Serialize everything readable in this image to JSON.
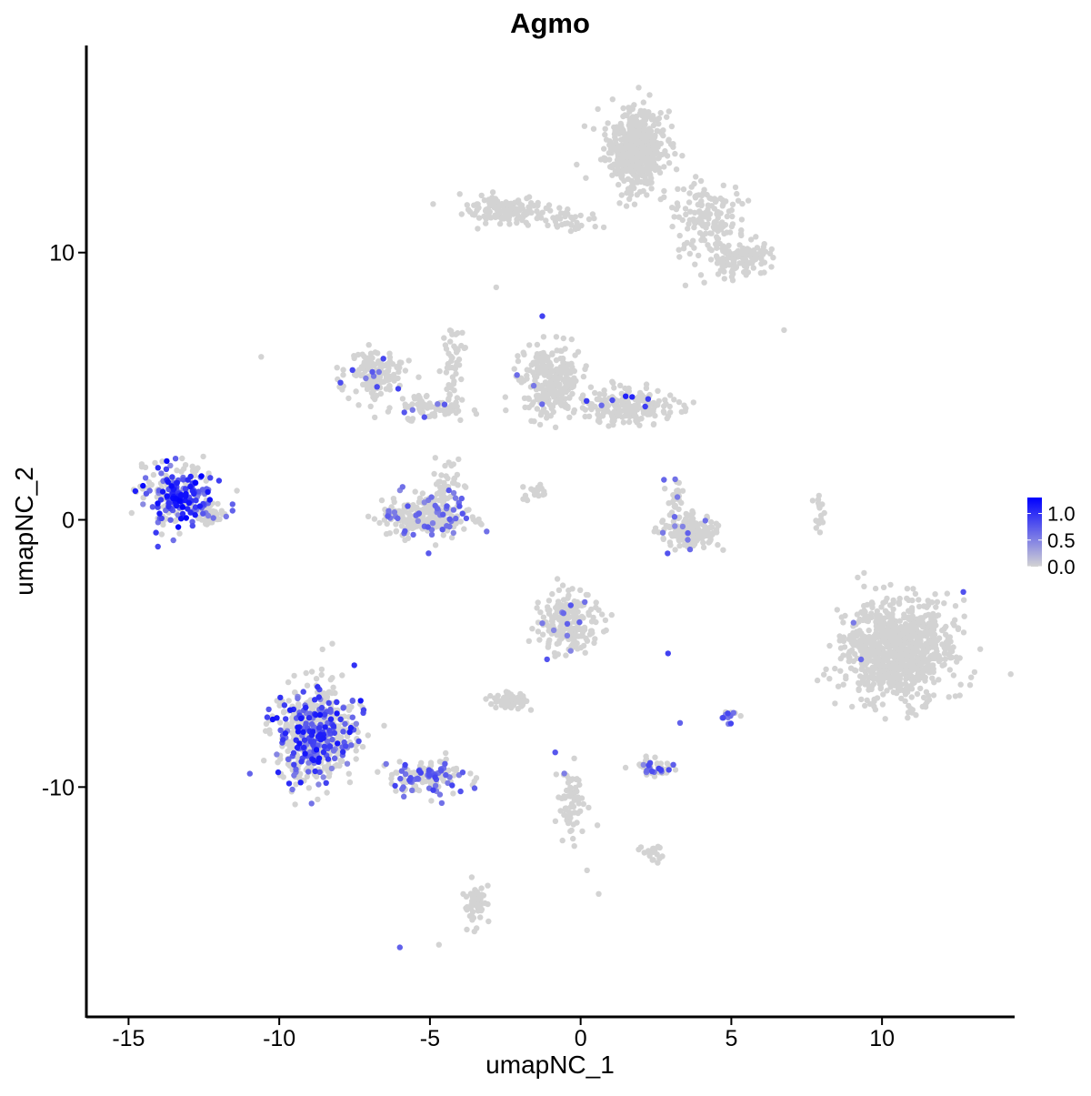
{
  "chart_data": {
    "type": "scatter",
    "title": "Agmo",
    "xlabel": "umapNC_1",
    "ylabel": "umapNC_2",
    "xlim": [
      -16.4,
      14.4
    ],
    "ylim": [
      -18.6,
      17.75
    ],
    "xticks": [
      -15,
      -10,
      -5,
      0,
      5,
      10
    ],
    "yticks": [
      -10,
      0,
      10
    ],
    "grid": false,
    "colorscale": {
      "low": "#d3d3d3",
      "high": "#0000ff",
      "min": 0.0,
      "max": 1.3,
      "ticks": [
        0.0,
        0.5,
        1.0
      ],
      "tick_labels": [
        "0.0",
        "0.5",
        "1.0"
      ]
    },
    "legend_placement": "right",
    "clusters": [
      {
        "center": [
          1.8,
          13.9
        ],
        "spread": [
          0.6,
          0.9
        ],
        "n": 550,
        "expressing_fraction": 0,
        "max_expr": 0
      },
      {
        "center": [
          4.2,
          11.2
        ],
        "spread": [
          0.8,
          0.9
        ],
        "n": 160,
        "expressing_fraction": 0,
        "max_expr": 0
      },
      {
        "center": [
          5.3,
          9.8
        ],
        "spread": [
          0.6,
          0.4
        ],
        "n": 120,
        "expressing_fraction": 0,
        "max_expr": 0
      },
      {
        "center": [
          -2.5,
          11.6
        ],
        "spread": [
          0.9,
          0.3
        ],
        "n": 140,
        "expressing_fraction": 0,
        "max_expr": 0
      },
      {
        "center": [
          -0.3,
          11.2
        ],
        "spread": [
          0.8,
          0.3
        ],
        "n": 40,
        "expressing_fraction": 0,
        "max_expr": 0
      },
      {
        "center": [
          -6.8,
          5.5
        ],
        "spread": [
          0.6,
          0.5
        ],
        "n": 150,
        "expressing_fraction": 0.05,
        "max_expr": 0.9
      },
      {
        "center": [
          -5.2,
          4.2
        ],
        "spread": [
          0.8,
          0.3
        ],
        "n": 80,
        "expressing_fraction": 0.03,
        "max_expr": 0.8
      },
      {
        "center": [
          -4.2,
          5.8
        ],
        "spread": [
          0.25,
          1.0
        ],
        "n": 50,
        "expressing_fraction": 0,
        "max_expr": 0
      },
      {
        "center": [
          -5.1,
          0.1
        ],
        "spread": [
          0.9,
          0.5
        ],
        "n": 280,
        "expressing_fraction": 0.14,
        "max_expr": 0.8
      },
      {
        "center": [
          -4.4,
          1.5
        ],
        "spread": [
          0.3,
          0.8
        ],
        "n": 40,
        "expressing_fraction": 0.05,
        "max_expr": 0.7
      },
      {
        "center": [
          -13.4,
          0.9
        ],
        "spread": [
          0.7,
          0.7
        ],
        "n": 280,
        "expressing_fraction": 0.55,
        "max_expr": 1.3
      },
      {
        "center": [
          -12.3,
          0.2
        ],
        "spread": [
          0.3,
          0.3
        ],
        "n": 40,
        "expressing_fraction": 0.15,
        "max_expr": 0.7
      },
      {
        "center": [
          -1.0,
          5.2
        ],
        "spread": [
          0.6,
          0.8
        ],
        "n": 260,
        "expressing_fraction": 0.01,
        "max_expr": 1.0
      },
      {
        "center": [
          1.6,
          4.2
        ],
        "spread": [
          0.9,
          0.4
        ],
        "n": 200,
        "expressing_fraction": 0.03,
        "max_expr": 1.1
      },
      {
        "center": [
          3.6,
          -0.5
        ],
        "spread": [
          0.6,
          0.4
        ],
        "n": 150,
        "expressing_fraction": 0.02,
        "max_expr": 0.8
      },
      {
        "center": [
          3.2,
          0.7
        ],
        "spread": [
          0.2,
          0.4
        ],
        "n": 25,
        "expressing_fraction": 0.05,
        "max_expr": 0.7
      },
      {
        "center": [
          10.5,
          -4.9
        ],
        "spread": [
          1.1,
          1.2
        ],
        "n": 900,
        "expressing_fraction": 0.002,
        "max_expr": 0.8
      },
      {
        "center": [
          -8.8,
          -8.0
        ],
        "spread": [
          0.8,
          1.1
        ],
        "n": 650,
        "expressing_fraction": 0.3,
        "max_expr": 1.2
      },
      {
        "center": [
          -5.0,
          -9.6
        ],
        "spread": [
          0.8,
          0.4
        ],
        "n": 140,
        "expressing_fraction": 0.35,
        "max_expr": 0.9
      },
      {
        "center": [
          -0.4,
          -3.9
        ],
        "spread": [
          0.6,
          0.7
        ],
        "n": 200,
        "expressing_fraction": 0.02,
        "max_expr": 0.8
      },
      {
        "center": [
          -2.4,
          -6.8
        ],
        "spread": [
          0.4,
          0.2
        ],
        "n": 60,
        "expressing_fraction": 0,
        "max_expr": 0
      },
      {
        "center": [
          2.4,
          -9.3
        ],
        "spread": [
          0.4,
          0.2
        ],
        "n": 60,
        "expressing_fraction": 0.3,
        "max_expr": 0.9
      },
      {
        "center": [
          -0.3,
          -10.7
        ],
        "spread": [
          0.25,
          1.0
        ],
        "n": 70,
        "expressing_fraction": 0.04,
        "max_expr": 0.8
      },
      {
        "center": [
          -3.5,
          -14.3
        ],
        "spread": [
          0.2,
          0.5
        ],
        "n": 60,
        "expressing_fraction": 0,
        "max_expr": 0
      },
      {
        "center": [
          4.9,
          -7.3
        ],
        "spread": [
          0.2,
          0.2
        ],
        "n": 14,
        "expressing_fraction": 0.6,
        "max_expr": 1.1
      },
      {
        "center": [
          7.9,
          0.3
        ],
        "spread": [
          0.12,
          0.4
        ],
        "n": 18,
        "expressing_fraction": 0,
        "max_expr": 0
      },
      {
        "center": [
          -1.6,
          1.0
        ],
        "spread": [
          0.4,
          0.2
        ],
        "n": 20,
        "expressing_fraction": 0,
        "max_expr": 0
      },
      {
        "center": [
          2.3,
          -12.5
        ],
        "spread": [
          0.3,
          0.2
        ],
        "n": 20,
        "expressing_fraction": 0,
        "max_expr": 0
      }
    ],
    "single_points": [
      {
        "x": 2.9,
        "y": -5.0,
        "expr": 0.9
      },
      {
        "x": 3.3,
        "y": -7.6,
        "expr": 0.7
      },
      {
        "x": -6.0,
        "y": -16.0,
        "expr": 0.7
      },
      {
        "x": -10.6,
        "y": 6.1,
        "expr": 0
      },
      {
        "x": 6.75,
        "y": 7.1,
        "expr": 0
      },
      {
        "x": -2.8,
        "y": 8.7,
        "expr": 0
      },
      {
        "x": 0.6,
        "y": -14.0,
        "expr": 0
      },
      {
        "x": -4.7,
        "y": -15.9,
        "expr": 0
      },
      {
        "x": 12.7,
        "y": -2.7,
        "expr": 0.8
      }
    ]
  }
}
